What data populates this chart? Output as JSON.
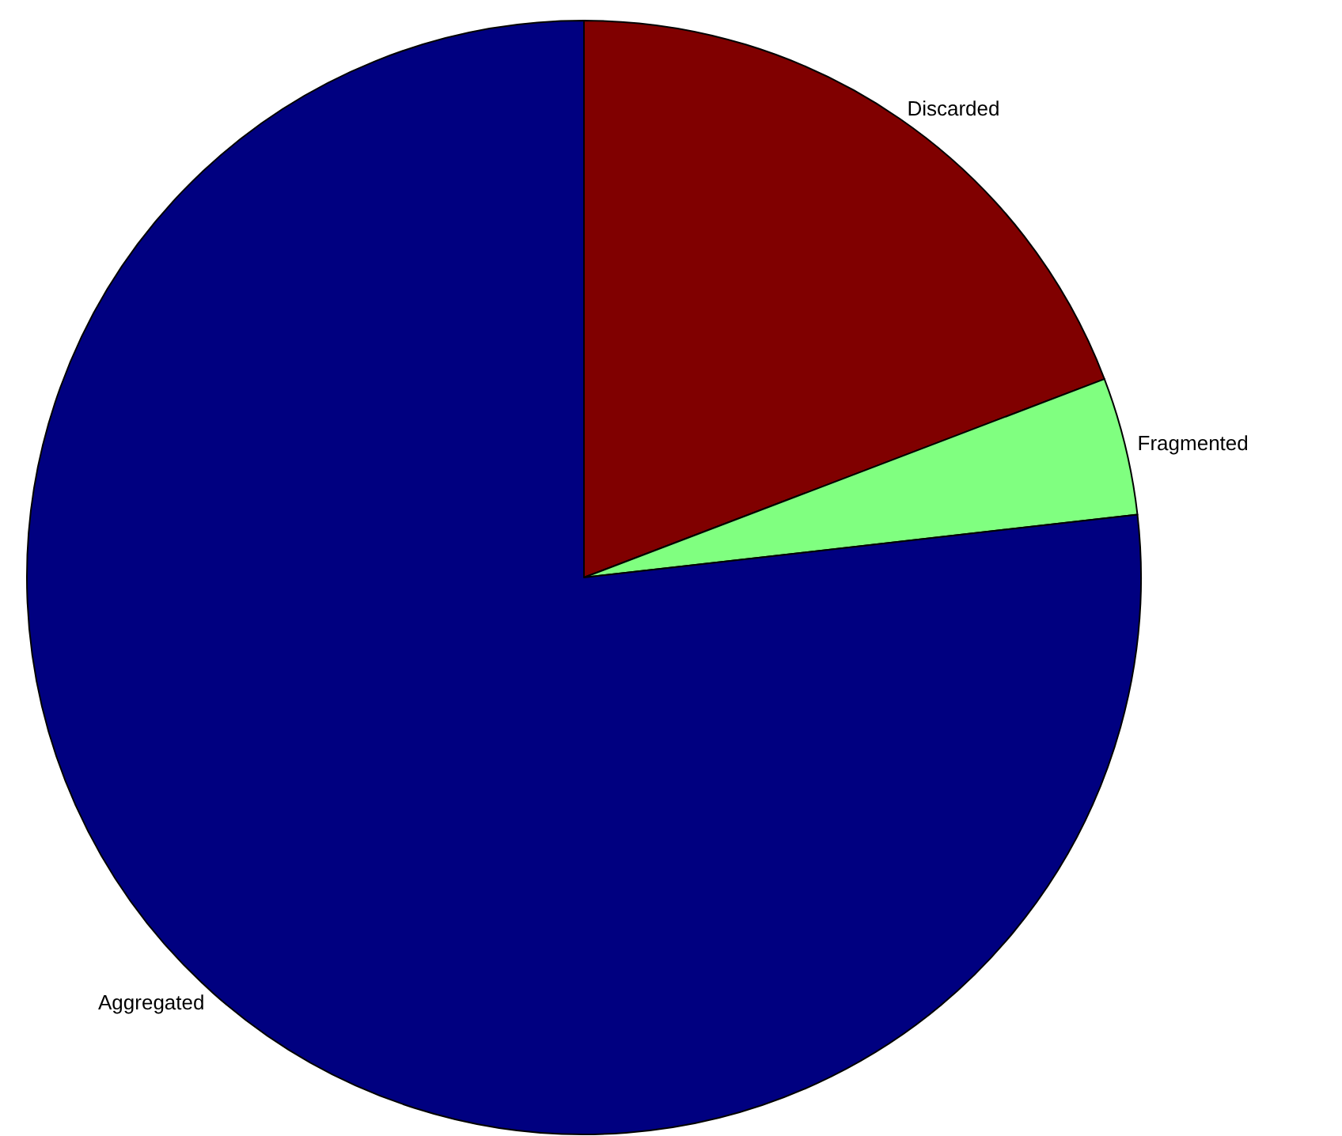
{
  "chart_data": {
    "type": "pie",
    "categories": [
      "Discarded",
      "Fragmented",
      "Aggregated"
    ],
    "values": [
      19.2,
      4.0,
      76.8
    ],
    "colors": [
      "#800000",
      "#80ff80",
      "#000080"
    ]
  }
}
